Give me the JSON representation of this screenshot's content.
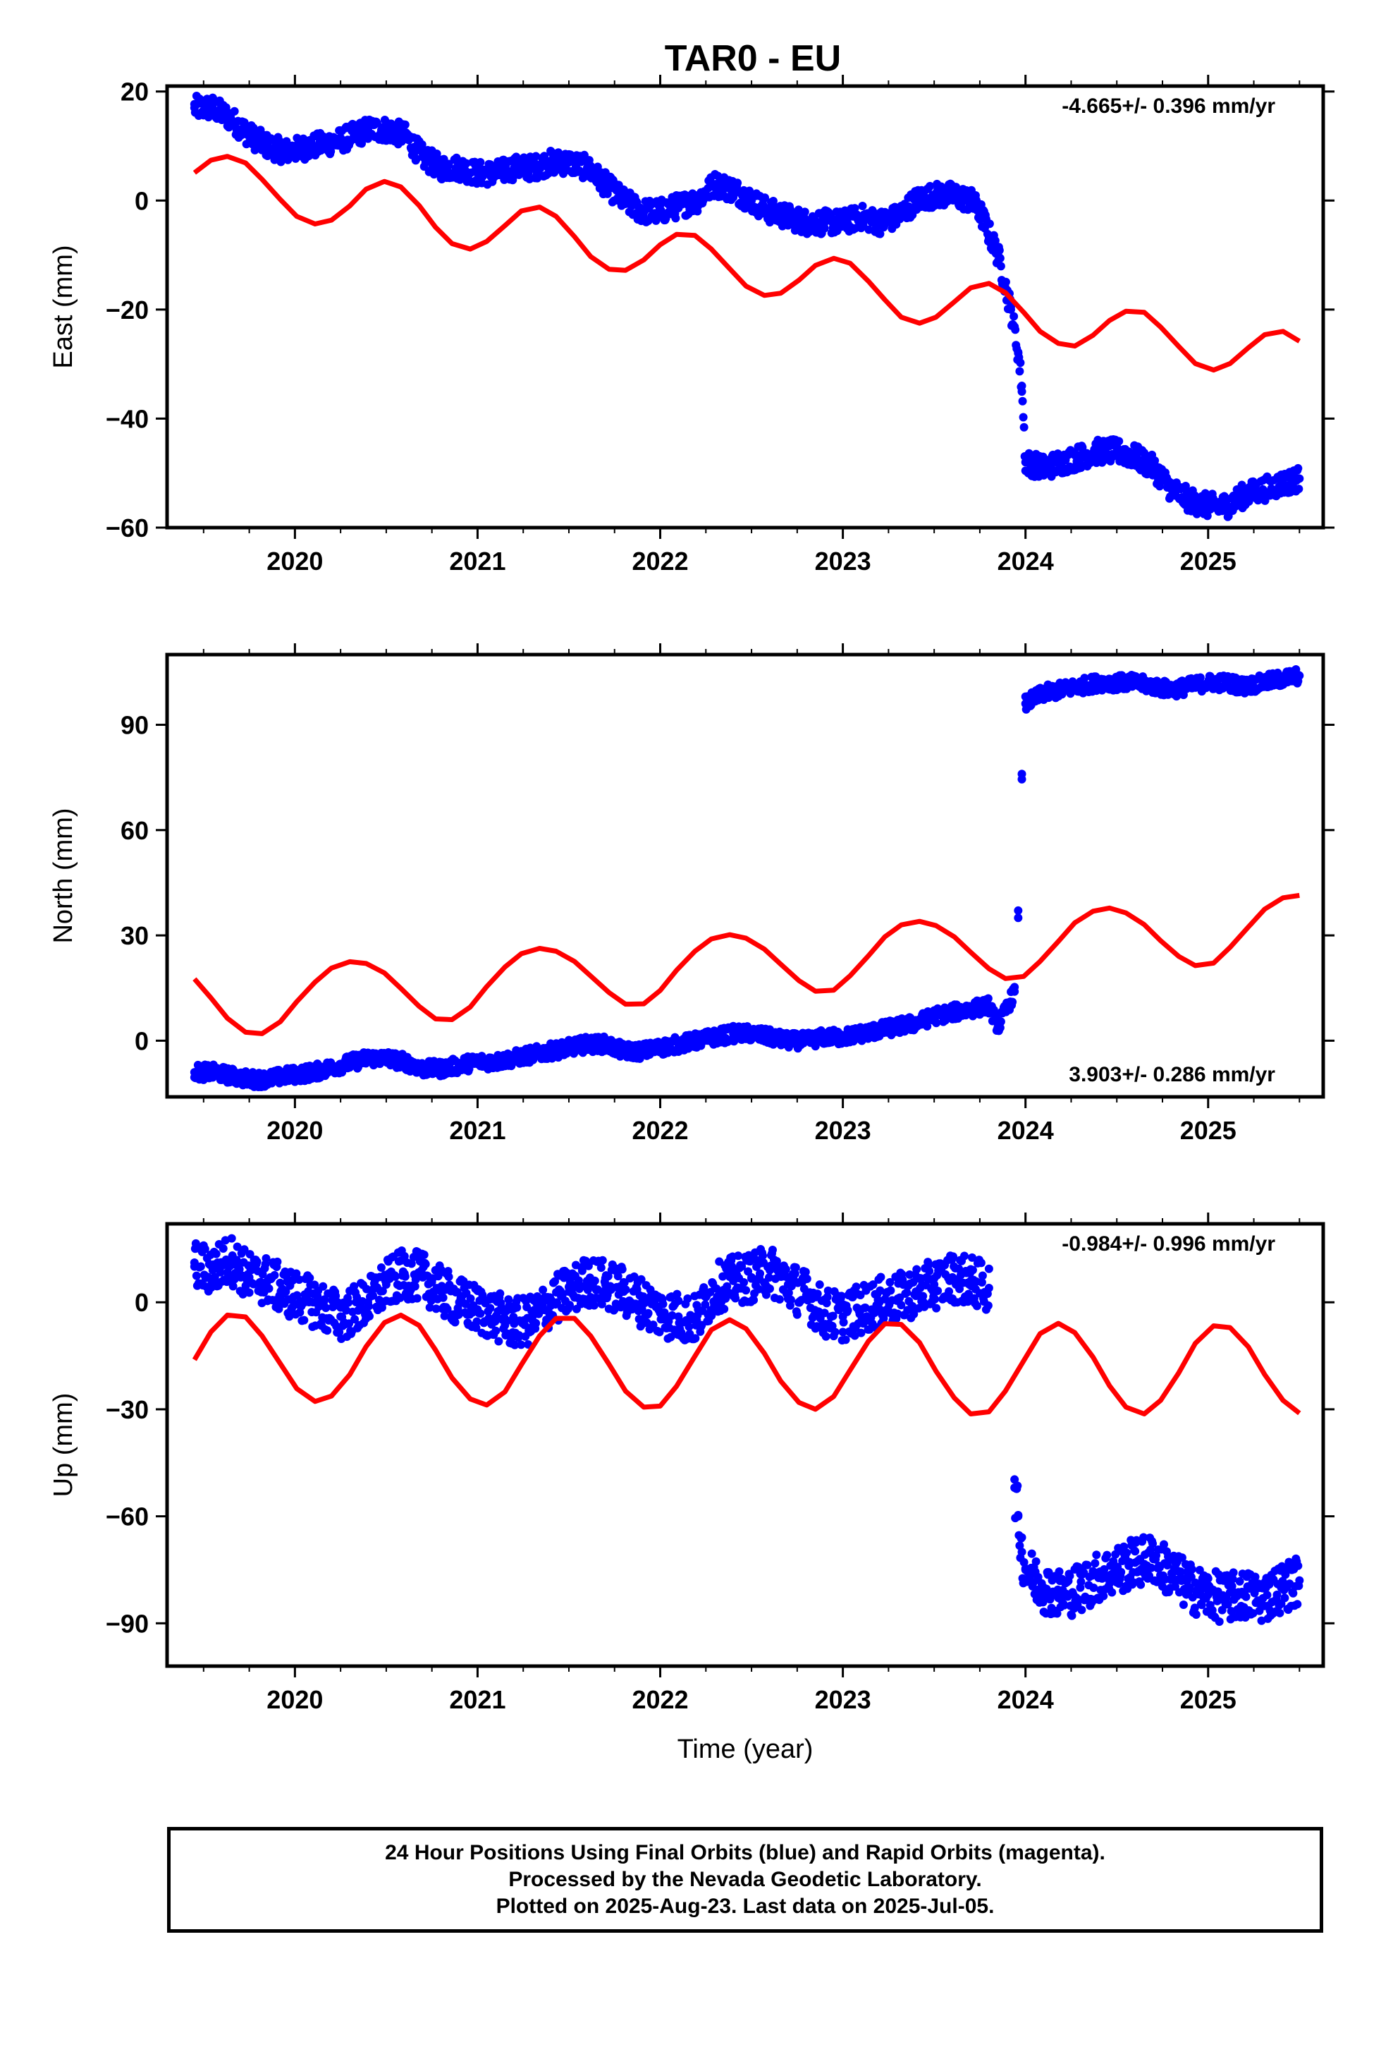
{
  "title": "TAR0 - EU",
  "chart_data": [
    {
      "type": "scatter",
      "panel": "east",
      "ylabel": "East (mm)",
      "xlabel": "",
      "xlim": [
        2019.3,
        2025.63
      ],
      "ylim": [
        -60,
        21
      ],
      "yticks": [
        20,
        0,
        -20,
        -40,
        -60
      ],
      "ytick_labels": [
        "20",
        "0",
        "−20",
        "−40",
        "−60"
      ],
      "xticks": [
        2020,
        2021,
        2022,
        2023,
        2024,
        2025
      ],
      "xtick_labels": [
        "2020",
        "2021",
        "2022",
        "2023",
        "2024",
        "2025"
      ],
      "rate_label": "-4.665+/- 0.396 mm/yr",
      "rate_position": "top-right",
      "series": [
        {
          "color": "#0000ff",
          "x": [
            2019.45,
            2019.55,
            2019.65,
            2019.75,
            2019.85,
            2019.95,
            2020.1,
            2020.25,
            2020.4,
            2020.5,
            2020.6,
            2020.7,
            2020.8,
            2020.9,
            2021.0,
            2021.1,
            2021.2,
            2021.3,
            2021.4,
            2021.5,
            2021.6,
            2021.7,
            2021.8,
            2021.9,
            2022.0,
            2022.1,
            2022.2,
            2022.3,
            2022.4,
            2022.5,
            2022.6,
            2022.7,
            2022.8,
            2022.9,
            2023.0,
            2023.1,
            2023.2,
            2023.3,
            2023.4,
            2023.5,
            2023.6,
            2023.7,
            2023.75,
            2023.85,
            2023.92,
            2023.96,
            2023.98,
            2024.0,
            2024.1,
            2024.2,
            2024.3,
            2024.4,
            2024.5,
            2024.6,
            2024.7,
            2024.8,
            2024.9,
            2025.0,
            2025.1,
            2025.2,
            2025.3,
            2025.4,
            2025.5
          ],
          "y": [
            17,
            17,
            15,
            12,
            10,
            9,
            10,
            11,
            13,
            13,
            12,
            8,
            6,
            6,
            5,
            5,
            6,
            6,
            7,
            7,
            6,
            3,
            0,
            -2,
            -2,
            -1,
            0,
            3,
            2,
            0,
            -2,
            -3,
            -4,
            -4,
            -4,
            -3,
            -4,
            -3,
            0,
            1,
            1,
            0,
            -2,
            -10,
            -20,
            -28,
            -34,
            -48,
            -49,
            -48,
            -47,
            -46,
            -46,
            -47,
            -49,
            -53,
            -55,
            -56,
            -56,
            -54,
            -53,
            -52,
            -51
          ]
        },
        {
          "color": "#ff0000",
          "x": [
            2019.45,
            2019.54,
            2019.63,
            2019.73,
            2019.82,
            2019.92,
            2020.01,
            2020.11,
            2020.2,
            2020.3,
            2020.39,
            2020.49,
            2020.58,
            2020.68,
            2020.77,
            2020.86,
            2020.96,
            2021.05,
            2021.15,
            2021.24,
            2021.34,
            2021.43,
            2021.53,
            2021.62,
            2021.72,
            2021.81,
            2021.91,
            2022.0,
            2022.09,
            2022.19,
            2022.28,
            2022.38,
            2022.47,
            2022.57,
            2022.66,
            2022.76,
            2022.85,
            2022.95,
            2023.04,
            2023.14,
            2023.23,
            2023.32,
            2023.42,
            2023.51,
            2023.61,
            2023.7,
            2023.8,
            2023.89,
            2023.99,
            2024.08,
            2024.18,
            2024.27,
            2024.37,
            2024.46,
            2024.55,
            2024.65,
            2024.74,
            2024.84,
            2024.93,
            2025.03,
            2025.12,
            2025.22,
            2025.31,
            2025.41,
            2025.5
          ],
          "y": [
            5.1,
            7.4,
            8.1,
            6.9,
            3.9,
            0.2,
            -2.9,
            -4.3,
            -3.6,
            -1.0,
            2.1,
            3.5,
            2.5,
            -0.9,
            -4.9,
            -7.9,
            -8.9,
            -7.5,
            -4.6,
            -1.9,
            -1.2,
            -2.9,
            -6.6,
            -10.3,
            -12.6,
            -12.8,
            -10.9,
            -8.1,
            -6.2,
            -6.4,
            -8.9,
            -12.5,
            -15.7,
            -17.4,
            -17.0,
            -14.6,
            -11.9,
            -10.6,
            -11.5,
            -14.8,
            -18.2,
            -21.4,
            -22.5,
            -21.4,
            -18.6,
            -16.0,
            -15.2,
            -16.9,
            -20.5,
            -24.0,
            -26.2,
            -26.7,
            -24.7,
            -22.0,
            -20.3,
            -20.5,
            -23.2,
            -26.8,
            -29.9,
            -31.1,
            -29.9,
            -27.0,
            -24.6,
            -24.0,
            -25.8
          ]
        }
      ]
    },
    {
      "type": "scatter",
      "panel": "north",
      "ylabel": "North (mm)",
      "xlabel": "",
      "xlim": [
        2019.3,
        2025.63
      ],
      "ylim": [
        -16,
        110
      ],
      "yticks": [
        90,
        60,
        30,
        0
      ],
      "ytick_labels": [
        "90",
        "60",
        "30",
        "0"
      ],
      "xticks": [
        2020,
        2021,
        2022,
        2023,
        2024,
        2025
      ],
      "xtick_labels": [
        "2020",
        "2021",
        "2022",
        "2023",
        "2024",
        "2025"
      ],
      "rate_label": "3.903+/- 0.286 mm/yr",
      "rate_position": "bottom-right",
      "series": [
        {
          "color": "#0000ff",
          "x": [
            2019.45,
            2019.55,
            2019.65,
            2019.75,
            2019.85,
            2019.95,
            2020.1,
            2020.25,
            2020.4,
            2020.5,
            2020.6,
            2020.7,
            2020.8,
            2020.9,
            2021.0,
            2021.1,
            2021.2,
            2021.3,
            2021.4,
            2021.5,
            2021.6,
            2021.7,
            2021.8,
            2021.9,
            2022.0,
            2022.1,
            2022.2,
            2022.3,
            2022.4,
            2022.5,
            2022.6,
            2022.7,
            2022.8,
            2022.9,
            2023.0,
            2023.1,
            2023.2,
            2023.3,
            2023.4,
            2023.5,
            2023.6,
            2023.7,
            2023.8,
            2023.85,
            2023.94,
            2023.96,
            2023.98,
            2024.0,
            2024.1,
            2024.2,
            2024.3,
            2024.4,
            2024.5,
            2024.6,
            2024.7,
            2024.8,
            2024.9,
            2025.0,
            2025.1,
            2025.2,
            2025.3,
            2025.4,
            2025.5
          ],
          "y": [
            -9,
            -9,
            -10,
            -11,
            -11,
            -10,
            -9,
            -7,
            -5,
            -5,
            -6,
            -8,
            -8,
            -7,
            -6,
            -6,
            -5,
            -4,
            -3,
            -2,
            -1,
            -1,
            -3,
            -3,
            -2,
            -1,
            0,
            1,
            2,
            2,
            1,
            0,
            0,
            1,
            1,
            2,
            3,
            4,
            5,
            7,
            8,
            9,
            10,
            4,
            14,
            35,
            76,
            96,
            99,
            100,
            101,
            102,
            102,
            102,
            101,
            100,
            101,
            102,
            102,
            101,
            102,
            103,
            104
          ]
        },
        {
          "color": "#ff0000",
          "x": [
            2019.45,
            2019.54,
            2019.63,
            2019.73,
            2019.82,
            2019.92,
            2020.01,
            2020.11,
            2020.2,
            2020.3,
            2020.39,
            2020.49,
            2020.58,
            2020.68,
            2020.77,
            2020.86,
            2020.96,
            2021.05,
            2021.15,
            2021.24,
            2021.34,
            2021.43,
            2021.53,
            2021.62,
            2021.72,
            2021.81,
            2021.91,
            2022.0,
            2022.09,
            2022.19,
            2022.28,
            2022.38,
            2022.47,
            2022.57,
            2022.66,
            2022.76,
            2022.85,
            2022.95,
            2023.04,
            2023.14,
            2023.23,
            2023.32,
            2023.42,
            2023.51,
            2023.61,
            2023.7,
            2023.8,
            2023.89,
            2023.99,
            2024.08,
            2024.18,
            2024.27,
            2024.37,
            2024.46,
            2024.55,
            2024.65,
            2024.74,
            2024.84,
            2024.93,
            2025.03,
            2025.12,
            2025.22,
            2025.31,
            2025.41,
            2025.5
          ],
          "y": [
            17.6,
            12.2,
            6.4,
            2.4,
            2.0,
            5.4,
            11.1,
            16.7,
            20.7,
            22.5,
            22.0,
            19.3,
            14.9,
            9.8,
            6.2,
            6.0,
            9.6,
            15.4,
            21.0,
            24.8,
            26.3,
            25.5,
            22.6,
            18.4,
            13.7,
            10.4,
            10.5,
            14.3,
            20.1,
            25.5,
            29.0,
            30.2,
            29.2,
            26.1,
            21.8,
            17.1,
            14.1,
            14.4,
            18.5,
            24.2,
            29.6,
            33.0,
            34.0,
            32.8,
            29.6,
            25.2,
            20.5,
            17.7,
            18.3,
            22.6,
            28.3,
            33.6,
            36.9,
            37.8,
            36.4,
            33.1,
            28.5,
            24.0,
            21.4,
            22.1,
            26.6,
            32.4,
            37.5,
            40.7,
            41.4
          ]
        }
      ]
    },
    {
      "type": "scatter",
      "panel": "up",
      "ylabel": "Up (mm)",
      "xlabel": "Time (year)",
      "xlim": [
        2019.3,
        2025.63
      ],
      "ylim": [
        -102,
        22
      ],
      "yticks": [
        0,
        -30,
        -60,
        -90
      ],
      "ytick_labels": [
        "0",
        "−30",
        "−60",
        "−90"
      ],
      "xticks": [
        2020,
        2021,
        2022,
        2023,
        2024,
        2025
      ],
      "xtick_labels": [
        "2020",
        "2021",
        "2022",
        "2023",
        "2024",
        "2025"
      ],
      "rate_label": "-0.984+/- 0.996 mm/yr",
      "rate_position": "top-right",
      "series": [
        {
          "color": "#0000ff",
          "x": [
            2019.45,
            2019.55,
            2019.65,
            2019.75,
            2019.85,
            2019.95,
            2020.1,
            2020.25,
            2020.4,
            2020.5,
            2020.6,
            2020.7,
            2020.8,
            2020.9,
            2021.0,
            2021.1,
            2021.2,
            2021.3,
            2021.4,
            2021.5,
            2021.6,
            2021.7,
            2021.8,
            2021.9,
            2022.0,
            2022.1,
            2022.2,
            2022.3,
            2022.4,
            2022.5,
            2022.6,
            2022.7,
            2022.8,
            2022.9,
            2023.0,
            2023.1,
            2023.2,
            2023.3,
            2023.4,
            2023.5,
            2023.6,
            2023.7,
            2023.8,
            2023.94,
            2023.96,
            2023.98,
            2024.0,
            2024.1,
            2024.2,
            2024.3,
            2024.4,
            2024.5,
            2024.6,
            2024.7,
            2024.8,
            2024.9,
            2025.0,
            2025.1,
            2025.2,
            2025.3,
            2025.4,
            2025.5
          ],
          "y": [
            10,
            9,
            12,
            7,
            6,
            3,
            0,
            -4,
            0,
            5,
            8,
            7,
            3,
            0,
            -2,
            -4,
            -6,
            -5,
            0,
            3,
            6,
            5,
            3,
            0,
            -3,
            -4,
            -5,
            4,
            6,
            7,
            9,
            5,
            2,
            -3,
            -4,
            -2,
            0,
            1,
            3,
            5,
            7,
            6,
            4,
            -52,
            -60,
            -70,
            -75,
            -80,
            -82,
            -80,
            -77,
            -75,
            -73,
            -72,
            -76,
            -80,
            -82,
            -83,
            -82,
            -83,
            -80,
            -78
          ]
        },
        {
          "color": "#ff0000",
          "x": [
            2019.45,
            2019.54,
            2019.63,
            2019.73,
            2019.82,
            2019.92,
            2020.01,
            2020.11,
            2020.2,
            2020.3,
            2020.39,
            2020.49,
            2020.58,
            2020.68,
            2020.77,
            2020.86,
            2020.96,
            2021.05,
            2021.15,
            2021.24,
            2021.34,
            2021.43,
            2021.53,
            2021.62,
            2021.72,
            2021.81,
            2021.91,
            2022.0,
            2022.09,
            2022.19,
            2022.28,
            2022.38,
            2022.47,
            2022.57,
            2022.66,
            2022.76,
            2022.85,
            2022.95,
            2023.04,
            2023.14,
            2023.23,
            2023.32,
            2023.42,
            2023.51,
            2023.61,
            2023.7,
            2023.8,
            2023.89,
            2023.99,
            2024.08,
            2024.18,
            2024.27,
            2024.37,
            2024.46,
            2024.55,
            2024.65,
            2024.74,
            2024.84,
            2024.93,
            2025.03,
            2025.12,
            2025.22,
            2025.31,
            2025.41,
            2025.5
          ],
          "y": [
            -16.1,
            -8.3,
            -3.6,
            -4.1,
            -9.4,
            -17.2,
            -24.2,
            -27.8,
            -26.3,
            -20.3,
            -12.4,
            -5.7,
            -3.6,
            -6.5,
            -13.4,
            -21.2,
            -27.1,
            -28.8,
            -25.1,
            -17.5,
            -9.4,
            -4.5,
            -4.5,
            -9.5,
            -17.4,
            -24.9,
            -29.4,
            -29.1,
            -23.5,
            -15.1,
            -7.7,
            -4.9,
            -7.4,
            -14.3,
            -22.1,
            -28.1,
            -30.0,
            -26.4,
            -19.0,
            -10.9,
            -6.0,
            -6.2,
            -11.3,
            -19.3,
            -26.8,
            -31.3,
            -30.7,
            -24.9,
            -16.4,
            -8.8,
            -5.9,
            -8.5,
            -15.4,
            -23.4,
            -29.4,
            -31.3,
            -27.5,
            -19.7,
            -11.5,
            -6.6,
            -7.1,
            -12.5,
            -20.3,
            -27.5,
            -31.1
          ]
        }
      ]
    }
  ],
  "footer": {
    "line1": "24 Hour Positions Using Final Orbits (blue) and Rapid Orbits (magenta).",
    "line2": "Processed by the Nevada Geodetic Laboratory.",
    "line3": "Plotted on 2025-Aug-23. Last data on 2025-Jul-05."
  }
}
